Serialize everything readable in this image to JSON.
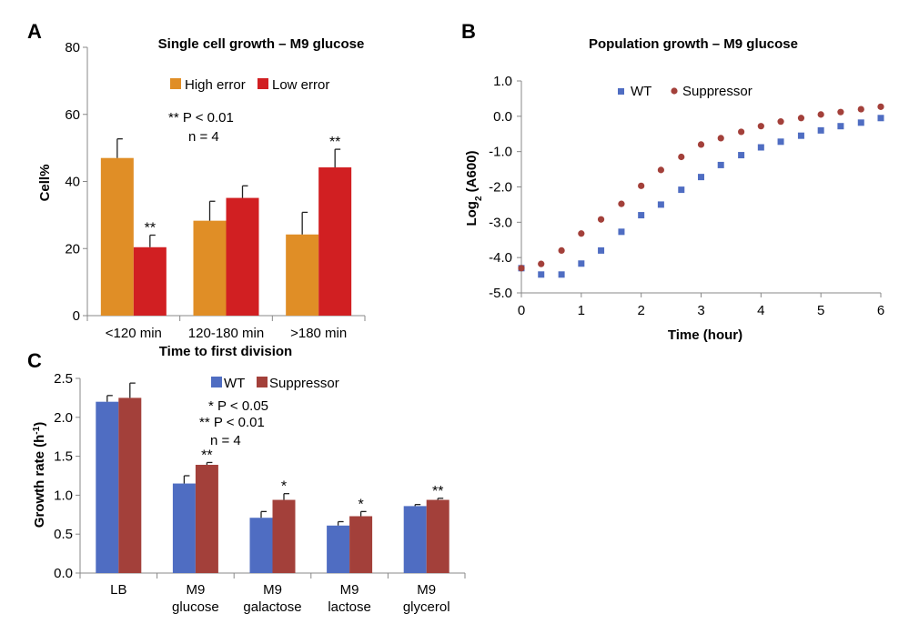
{
  "panels": {
    "A": "A",
    "B": "B",
    "C": "C"
  },
  "colors": {
    "high_error": "#E08E26",
    "low_error": "#D11F22",
    "wt": "#4F6DC2",
    "suppressor": "#A3403A",
    "axis": "#888888"
  },
  "chart_data": [
    {
      "id": "A",
      "type": "bar",
      "title": "Single cell growth – M9 glucose",
      "xlabel": "Time to first division",
      "ylabel": "Cell%",
      "ylim": [
        0,
        80
      ],
      "yticks": [
        "0",
        "20",
        "40",
        "60",
        "80"
      ],
      "categories": [
        "<120 min",
        "120-180 min",
        ">180 min"
      ],
      "series": [
        {
          "name": "High error",
          "values": [
            47,
            28.3,
            24.2
          ],
          "errors": [
            5.7,
            5.8,
            6.6
          ]
        },
        {
          "name": "Low error",
          "values": [
            20.4,
            35.1,
            44.2
          ],
          "errors": [
            3.6,
            3.6,
            5.4
          ]
        }
      ],
      "significance": [
        {
          "category": 0,
          "series": 1,
          "mark": "**"
        },
        {
          "category": 2,
          "series": 1,
          "mark": "**"
        }
      ],
      "annotations": [
        "** P < 0.01",
        "n = 4"
      ],
      "legend": "top-center"
    },
    {
      "id": "B",
      "type": "scatter",
      "title": "Population growth – M9 glucose",
      "xlabel": "Time (hour)",
      "ylabel": "Log2 (A600)",
      "xlim": [
        0,
        6
      ],
      "ylim": [
        -5.0,
        1.0
      ],
      "xticks": [
        "0",
        "1",
        "2",
        "3",
        "4",
        "5",
        "6"
      ],
      "yticks": [
        "-5.0",
        "-4.0",
        "-3.0",
        "-2.0",
        "-1.0",
        "0.0",
        "1.0"
      ],
      "series": [
        {
          "name": "WT",
          "marker": "square",
          "x": [
            0,
            0.33,
            0.67,
            1,
            1.33,
            1.67,
            2,
            2.33,
            2.67,
            3,
            3.33,
            3.67,
            4,
            4.33,
            4.67,
            5,
            5.33,
            5.67,
            6
          ],
          "y": [
            -4.3,
            -4.48,
            -4.48,
            -4.17,
            -3.8,
            -3.27,
            -2.8,
            -2.5,
            -2.08,
            -1.72,
            -1.38,
            -1.1,
            -0.88,
            -0.72,
            -0.55,
            -0.4,
            -0.28,
            -0.18,
            -0.05
          ]
        },
        {
          "name": "Suppressor",
          "marker": "circle",
          "x": [
            0,
            0.33,
            0.67,
            1,
            1.33,
            1.67,
            2,
            2.33,
            2.67,
            3,
            3.33,
            3.67,
            4,
            4.33,
            4.67,
            5,
            5.33,
            5.67,
            6
          ],
          "y": [
            -4.3,
            -4.18,
            -3.8,
            -3.32,
            -2.92,
            -2.48,
            -1.97,
            -1.52,
            -1.15,
            -0.8,
            -0.62,
            -0.44,
            -0.28,
            -0.15,
            -0.05,
            0.05,
            0.12,
            0.2,
            0.27
          ]
        }
      ],
      "legend": "top-center"
    },
    {
      "id": "C",
      "type": "bar",
      "title": "",
      "xlabel": "",
      "ylabel": "Growth rate (h-1)",
      "ylim": [
        0,
        2.5
      ],
      "yticks": [
        "0.0",
        "0.5",
        "1.0",
        "1.5",
        "2.0",
        "2.5"
      ],
      "categories": [
        [
          "LB"
        ],
        [
          "M9",
          "glucose"
        ],
        [
          "M9",
          "galactose"
        ],
        [
          "M9",
          "lactose"
        ],
        [
          "M9",
          "glycerol"
        ]
      ],
      "series": [
        {
          "name": "WT",
          "values": [
            2.2,
            1.15,
            0.71,
            0.61,
            0.86
          ],
          "errors": [
            0.08,
            0.1,
            0.08,
            0.05,
            0.02
          ]
        },
        {
          "name": "Suppressor",
          "values": [
            2.25,
            1.39,
            0.94,
            0.73,
            0.94
          ],
          "errors": [
            0.19,
            0.03,
            0.08,
            0.06,
            0.02
          ]
        }
      ],
      "significance": [
        {
          "category": 1,
          "series": 1,
          "mark": "**"
        },
        {
          "category": 2,
          "series": 1,
          "mark": "*"
        },
        {
          "category": 3,
          "series": 1,
          "mark": "*"
        },
        {
          "category": 4,
          "series": 1,
          "mark": "**"
        }
      ],
      "annotations": [
        "* P < 0.05",
        "** P < 0.01",
        "n = 4"
      ],
      "legend": "top-center"
    }
  ]
}
